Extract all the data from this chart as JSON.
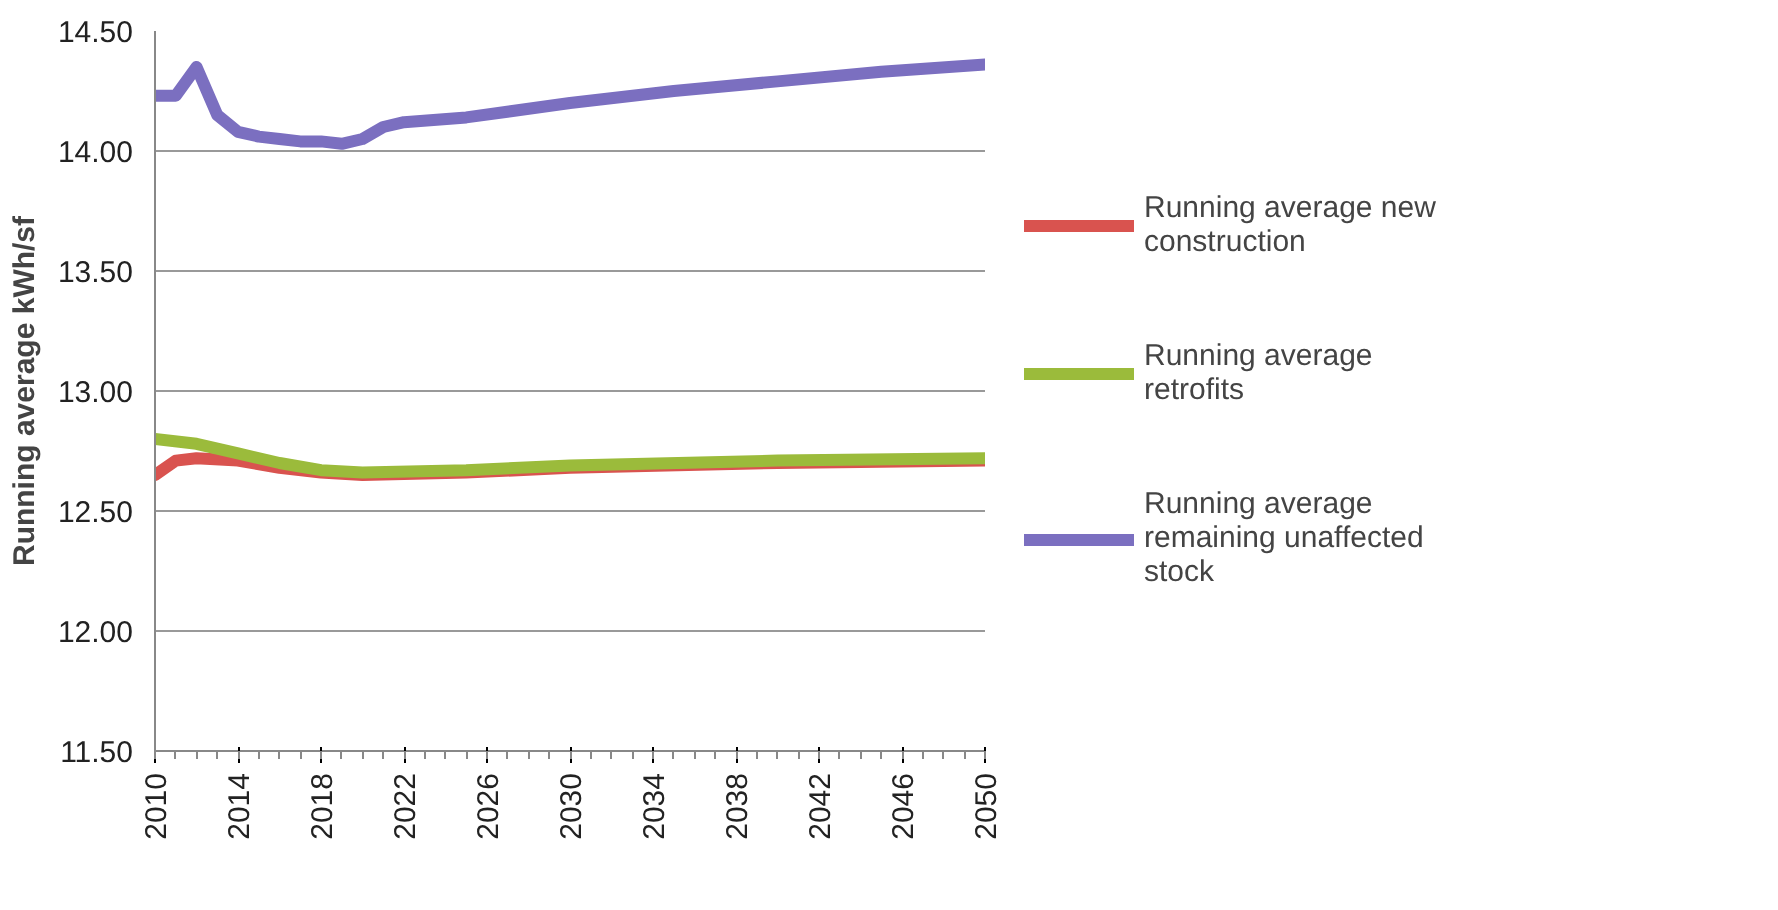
{
  "chart_data": {
    "type": "line",
    "ylabel": "Running average kWh/sf",
    "xlim": [
      2010,
      2050
    ],
    "xticks": [
      2010,
      2014,
      2018,
      2022,
      2026,
      2030,
      2034,
      2038,
      2042,
      2046,
      2050
    ],
    "ylim": [
      11.5,
      14.5
    ],
    "yticks": [
      {
        "value": 11.5,
        "label": "11.50"
      },
      {
        "value": 12.0,
        "label": "12.00"
      },
      {
        "value": 12.5,
        "label": "12.50"
      },
      {
        "value": 13.0,
        "label": "13.00"
      },
      {
        "value": 13.5,
        "label": "13.50"
      },
      {
        "value": 14.0,
        "label": "14.00"
      },
      {
        "value": 14.5,
        "label": "14.50"
      }
    ],
    "grid": "y",
    "legend": "right",
    "marker": "none",
    "line_style": "solid",
    "series": [
      {
        "name": "Running average new construction",
        "color": "#d9534f",
        "x": [
          2010,
          2011,
          2012,
          2014,
          2016,
          2018,
          2020,
          2025,
          2030,
          2040,
          2050
        ],
        "values": [
          12.65,
          12.71,
          12.72,
          12.71,
          12.68,
          12.66,
          12.65,
          12.66,
          12.68,
          12.7,
          12.71
        ]
      },
      {
        "name": "Running average retrofits",
        "color": "#9bbb3b",
        "x": [
          2010,
          2012,
          2014,
          2016,
          2018,
          2020,
          2025,
          2030,
          2040,
          2050
        ],
        "values": [
          12.8,
          12.78,
          12.74,
          12.7,
          12.67,
          12.66,
          12.67,
          12.69,
          12.71,
          12.72
        ]
      },
      {
        "name": "Running average remaining unaffected stock",
        "color": "#7b6fc0",
        "x": [
          2010,
          2011,
          2012,
          2013,
          2014,
          2015,
          2016,
          2017,
          2018,
          2019,
          2020,
          2021,
          2022,
          2025,
          2030,
          2035,
          2040,
          2045,
          2050
        ],
        "values": [
          14.23,
          14.23,
          14.35,
          14.15,
          14.08,
          14.06,
          14.05,
          14.04,
          14.04,
          14.03,
          14.05,
          14.1,
          14.12,
          14.14,
          14.2,
          14.25,
          14.29,
          14.33,
          14.36
        ]
      }
    ]
  }
}
